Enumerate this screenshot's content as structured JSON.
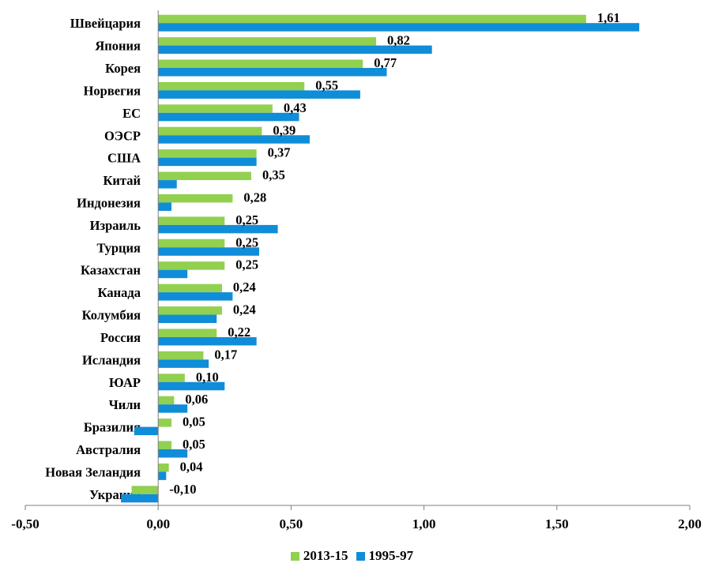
{
  "chart_data": {
    "type": "bar",
    "orientation": "horizontal",
    "categories": [
      "Швейцария",
      "Япония",
      "Корея",
      "Норвегия",
      "ЕС",
      "ОЭСР",
      "США",
      "Китай",
      "Индонезия",
      "Израиль",
      "Турция",
      "Казахстан",
      "Канада",
      "Колумбия",
      "Россия",
      "Исландия",
      "ЮАР",
      "Чили",
      "Бразилия",
      "Австралия",
      "Новая Зеландия",
      "Украина"
    ],
    "series": [
      {
        "name": "2013-15",
        "color": "#92d050",
        "values": [
          1.61,
          0.82,
          0.77,
          0.55,
          0.43,
          0.39,
          0.37,
          0.35,
          0.28,
          0.25,
          0.25,
          0.25,
          0.24,
          0.24,
          0.22,
          0.17,
          0.1,
          0.06,
          0.05,
          0.05,
          0.04,
          -0.1
        ]
      },
      {
        "name": "1995-97",
        "color": "#0f8dd8",
        "values": [
          1.81,
          1.03,
          0.86,
          0.76,
          0.53,
          0.57,
          0.37,
          0.07,
          0.05,
          0.45,
          0.38,
          0.11,
          0.28,
          0.22,
          0.37,
          0.19,
          0.25,
          0.11,
          -0.09,
          0.11,
          0.03,
          -0.14
        ]
      }
    ],
    "data_labels": [
      "1,61",
      "0,82",
      "0,77",
      "0,55",
      "0,43",
      "0,39",
      "0,37",
      "0,35",
      "0,28",
      "0,25",
      "0,25",
      "0,25",
      "0,24",
      "0,24",
      "0,22",
      "0,17",
      "0,10",
      "0,06",
      "0,05",
      "0,05",
      "0,04",
      "-0,10"
    ],
    "x_ticks": [
      -0.5,
      0,
      0.5,
      1,
      1.5,
      2
    ],
    "x_tick_labels": [
      "-0,50",
      "0,00",
      "0,50",
      "1,00",
      "1,50",
      "2,00"
    ],
    "xlim": [
      -0.5,
      2.0
    ],
    "title": "",
    "xlabel": "",
    "ylabel": "",
    "grid": false,
    "legend_position": "bottom"
  }
}
